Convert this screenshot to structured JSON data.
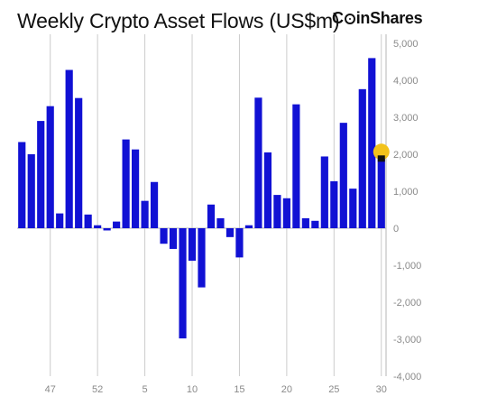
{
  "title": "Weekly Crypto Asset Flows (US$m)",
  "logo": {
    "pre": "C",
    "post": "inShares"
  },
  "colors": {
    "bar": "#1111d4",
    "grid": "#cccccc",
    "axis": "#b5b5b5",
    "marker": "#f2c21b",
    "text": "#111111",
    "tick": "#8a8a8a"
  },
  "chart_data": {
    "type": "bar",
    "title": "Weekly Crypto Asset Flows (US$m)",
    "xlabel": "",
    "ylabel": "",
    "ylim": [
      -4000,
      5000
    ],
    "yticks": [
      "5,000",
      "4,000",
      "3,000",
      "2,000",
      "1,000",
      "0",
      "-1,000",
      "-2,000",
      "-3,000",
      "-4,000"
    ],
    "ytick_values": [
      5000,
      4000,
      3000,
      2000,
      1000,
      0,
      -1000,
      -2000,
      -3000,
      -4000
    ],
    "xticks": [
      {
        "label": "47",
        "index": 3.5
      },
      {
        "label": "52",
        "index": 8.5
      },
      {
        "label": "5",
        "index": 13.5
      },
      {
        "label": "10",
        "index": 18.5
      },
      {
        "label": "15",
        "index": 23.5
      },
      {
        "label": "20",
        "index": 28.5
      },
      {
        "label": "25",
        "index": 33.5
      },
      {
        "label": "30",
        "index": 38.5
      }
    ],
    "values": [
      2330,
      2000,
      2900,
      3300,
      400,
      4280,
      3520,
      370,
      80,
      -60,
      180,
      2400,
      2130,
      740,
      1250,
      -420,
      -560,
      -2980,
      -880,
      -1600,
      640,
      270,
      -240,
      -790,
      80,
      3530,
      2050,
      900,
      810,
      3350,
      270,
      200,
      1940,
      1270,
      2850,
      1070,
      3760,
      4600,
      1920
    ],
    "grid": true,
    "legend": "none",
    "marker": {
      "index": 38,
      "value": 1920,
      "shape": "circle"
    }
  }
}
